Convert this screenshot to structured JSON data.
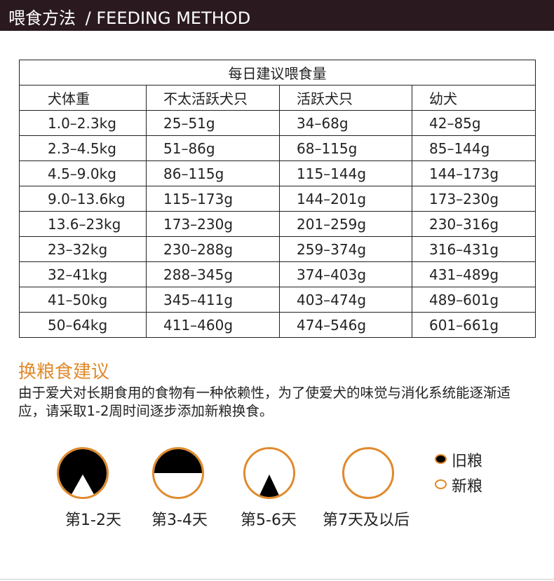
{
  "header": {
    "title_zh": "喂食方法",
    "title_en": "/ FEEDING METHOD"
  },
  "table": {
    "caption": "每日建议喂食量",
    "columns": [
      "犬体重",
      "不太活跃犬只",
      "活跃犬只",
      "幼犬"
    ],
    "rows": [
      [
        "1.0–2.3kg",
        "25–51g",
        "34–68g",
        "42–85g"
      ],
      [
        "2.3–4.5kg",
        "51–86g",
        "68–115g",
        "85–144g"
      ],
      [
        "4.5–9.0kg",
        "86–115g",
        "115–144g",
        "144–173g"
      ],
      [
        "9.0–13.6kg",
        "115–173g",
        "144–201g",
        "173–230g"
      ],
      [
        "13.6–23kg",
        "173–230g",
        "201–259g",
        "230–316g"
      ],
      [
        "23–32kg",
        "230–288g",
        "259–374g",
        "316–431g"
      ],
      [
        "32–41kg",
        "288–345g",
        "374–403g",
        "431–489g"
      ],
      [
        "41–50kg",
        "345–411g",
        "403–474g",
        "489–601g"
      ],
      [
        "50–64kg",
        "411–460g",
        "474–546g",
        "601–661g"
      ]
    ]
  },
  "transition": {
    "title": "换粮食建议",
    "description": "由于爱犬对长期食用的食物有一种依赖性，为了使爱犬的味觉与消化系统能逐渐适应，请采取1-2周时间逐步添加新粮换食。",
    "stages": [
      {
        "label": "第1-2天",
        "new_fraction": 0.25
      },
      {
        "label": "第3-4天",
        "new_fraction": 0.5
      },
      {
        "label": "第5-6天",
        "new_fraction": 0.75
      },
      {
        "label": "第7天及以后",
        "new_fraction": 1.0
      }
    ],
    "legend": {
      "old": "旧粮",
      "new": "新粮"
    },
    "colors": {
      "accent": "#e08a2c",
      "old_food": "#000000",
      "new_food": "#ffffff",
      "header_bg": "#2a1a20"
    }
  }
}
